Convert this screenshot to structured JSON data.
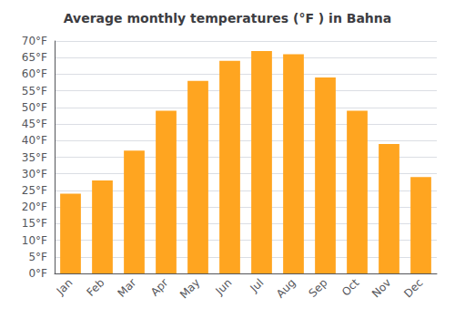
{
  "chart_data": {
    "type": "bar",
    "title": "Average monthly temperatures (°F ) in Bahna",
    "categories": [
      "Jan",
      "Feb",
      "Mar",
      "Apr",
      "May",
      "Jun",
      "Jul",
      "Aug",
      "Sep",
      "Oct",
      "Nov",
      "Dec"
    ],
    "values": [
      24,
      28,
      37,
      49,
      58,
      64,
      67,
      66,
      59,
      49,
      39,
      29
    ],
    "color": "#FFA520",
    "ylim": [
      0,
      70
    ],
    "yticks": [
      {
        "value": 0,
        "label": "0°F"
      },
      {
        "value": 5,
        "label": "5°F"
      },
      {
        "value": 10,
        "label": "10°F"
      },
      {
        "value": 15,
        "label": "15°F"
      },
      {
        "value": 20,
        "label": "20°F"
      },
      {
        "value": 25,
        "label": "25°F"
      },
      {
        "value": 30,
        "label": "30°F"
      },
      {
        "value": 35,
        "label": "35°F"
      },
      {
        "value": 40,
        "label": "40°F"
      },
      {
        "value": 45,
        "label": "45°F"
      },
      {
        "value": 50,
        "label": "50°F"
      },
      {
        "value": 55,
        "label": "55°F"
      },
      {
        "value": 60,
        "label": "60°F"
      },
      {
        "value": 65,
        "label": "65°F"
      },
      {
        "value": 70,
        "label": "70°F"
      }
    ],
    "grid": true
  }
}
